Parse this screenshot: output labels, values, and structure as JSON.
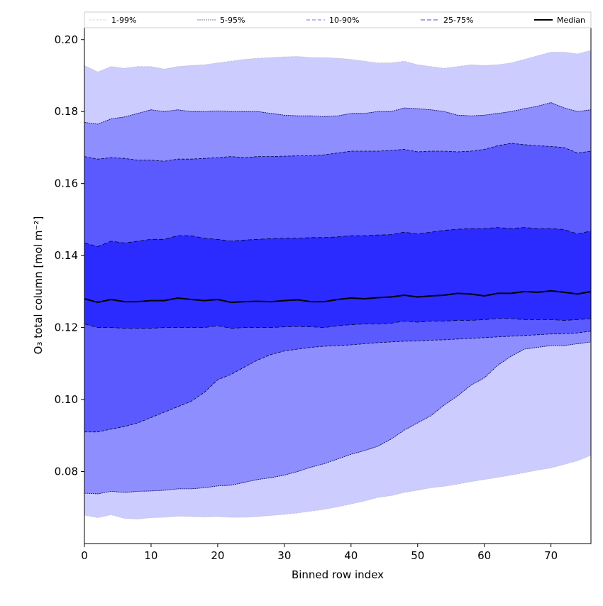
{
  "chart_data": {
    "type": "area",
    "title": "",
    "xlabel": "Binned row index",
    "ylabel": "O₃ total column [mol m⁻²]",
    "xlim": [
      0,
      76
    ],
    "ylim": [
      0.06,
      0.2035
    ],
    "xticks": [
      0,
      10,
      20,
      30,
      40,
      50,
      60,
      70
    ],
    "yticks": [
      0.08,
      0.1,
      0.12,
      0.14,
      0.16,
      0.18,
      0.2
    ],
    "ytick_labels": [
      "0.08",
      "0.10",
      "0.12",
      "0.14",
      "0.16",
      "0.18",
      "0.20"
    ],
    "x": [
      0,
      2,
      4,
      6,
      8,
      10,
      12,
      14,
      16,
      18,
      20,
      22,
      24,
      26,
      28,
      30,
      32,
      34,
      36,
      38,
      40,
      42,
      44,
      46,
      48,
      50,
      52,
      54,
      56,
      58,
      60,
      62,
      64,
      66,
      68,
      70,
      72,
      74,
      76
    ],
    "bands": [
      {
        "name": "1-99%",
        "color": "#ccccff",
        "line_color": "#b5b5c5",
        "dash": "1,1",
        "lower": [
          0.0679,
          0.0672,
          0.068,
          0.067,
          0.0668,
          0.0672,
          0.0673,
          0.0676,
          0.0675,
          0.0674,
          0.0675,
          0.0673,
          0.0673,
          0.0675,
          0.0678,
          0.0681,
          0.0685,
          0.069,
          0.0695,
          0.0702,
          0.071,
          0.0718,
          0.0728,
          0.0733,
          0.0742,
          0.0748,
          0.0755,
          0.0759,
          0.0765,
          0.0772,
          0.0778,
          0.0784,
          0.079,
          0.0797,
          0.0804,
          0.081,
          0.082,
          0.083,
          0.0845
        ],
        "upper": [
          0.1928,
          0.191,
          0.1925,
          0.192,
          0.1925,
          0.1925,
          0.1918,
          0.1925,
          0.1928,
          0.193,
          0.1935,
          0.194,
          0.1945,
          0.1948,
          0.195,
          0.1952,
          0.1953,
          0.195,
          0.195,
          0.1948,
          0.1945,
          0.194,
          0.1935,
          0.1935,
          0.194,
          0.193,
          0.1925,
          0.192,
          0.1925,
          0.193,
          0.1928,
          0.193,
          0.1935,
          0.1945,
          0.1955,
          0.1965,
          0.1965,
          0.196,
          0.197
        ]
      },
      {
        "name": "5-95%",
        "color": "#8e8eff",
        "line_color": "#000066",
        "dash": "2,1",
        "lower": [
          0.074,
          0.0738,
          0.0745,
          0.0742,
          0.0745,
          0.0746,
          0.0748,
          0.0752,
          0.0752,
          0.0755,
          0.076,
          0.0762,
          0.077,
          0.0778,
          0.0783,
          0.079,
          0.08,
          0.0812,
          0.0822,
          0.0835,
          0.0848,
          0.0858,
          0.087,
          0.089,
          0.0915,
          0.0935,
          0.0955,
          0.0985,
          0.101,
          0.104,
          0.106,
          0.1095,
          0.112,
          0.114,
          0.1145,
          0.115,
          0.115,
          0.1155,
          0.116
        ],
        "upper": [
          0.177,
          0.1765,
          0.178,
          0.1785,
          0.1795,
          0.1805,
          0.18,
          0.1805,
          0.18,
          0.18,
          0.1802,
          0.18,
          0.18,
          0.18,
          0.1795,
          0.179,
          0.1788,
          0.1788,
          0.1786,
          0.1788,
          0.1795,
          0.1795,
          0.18,
          0.18,
          0.181,
          0.1808,
          0.1805,
          0.18,
          0.179,
          0.1788,
          0.179,
          0.1795,
          0.18,
          0.1808,
          0.1815,
          0.1825,
          0.181,
          0.18,
          0.1805
        ]
      },
      {
        "name": "10-90%",
        "color": "#5a5aff",
        "line_color": "#000044",
        "dash": "4,2",
        "lower": [
          0.091,
          0.091,
          0.0918,
          0.0925,
          0.0935,
          0.095,
          0.0965,
          0.098,
          0.0995,
          0.102,
          0.1055,
          0.107,
          0.109,
          0.111,
          0.1125,
          0.1135,
          0.114,
          0.1145,
          0.1148,
          0.115,
          0.1152,
          0.1155,
          0.1158,
          0.116,
          0.1162,
          0.1163,
          0.1165,
          0.1166,
          0.1168,
          0.117,
          0.1172,
          0.1174,
          0.1176,
          0.1178,
          0.118,
          0.1182,
          0.1183,
          0.1185,
          0.119
        ],
        "upper": [
          0.1675,
          0.1668,
          0.1672,
          0.167,
          0.1665,
          0.1665,
          0.1662,
          0.1668,
          0.1668,
          0.167,
          0.1672,
          0.1675,
          0.1672,
          0.1675,
          0.1675,
          0.1676,
          0.1677,
          0.1677,
          0.168,
          0.1685,
          0.169,
          0.169,
          0.169,
          0.1692,
          0.1695,
          0.1688,
          0.169,
          0.169,
          0.1688,
          0.169,
          0.1695,
          0.1705,
          0.1712,
          0.1708,
          0.1705,
          0.1703,
          0.17,
          0.1685,
          0.169
        ]
      },
      {
        "name": "25-75%",
        "color": "#2b2bff",
        "line_color": "#000033",
        "dash": "6,3",
        "lower": [
          0.121,
          0.12,
          0.12,
          0.1198,
          0.1198,
          0.1198,
          0.12,
          0.12,
          0.12,
          0.12,
          0.1205,
          0.1198,
          0.12,
          0.12,
          0.12,
          0.1202,
          0.1203,
          0.1202,
          0.12,
          0.1205,
          0.1208,
          0.121,
          0.121,
          0.1212,
          0.1218,
          0.1215,
          0.1218,
          0.1218,
          0.122,
          0.122,
          0.1222,
          0.1225,
          0.1225,
          0.1222,
          0.1222,
          0.1222,
          0.122,
          0.1222,
          0.1225
        ],
        "upper": [
          0.1435,
          0.1425,
          0.144,
          0.1435,
          0.144,
          0.1445,
          0.1445,
          0.1455,
          0.1455,
          0.1448,
          0.1445,
          0.144,
          0.1443,
          0.1445,
          0.1447,
          0.1448,
          0.1448,
          0.145,
          0.145,
          0.1452,
          0.1455,
          0.1455,
          0.1457,
          0.1458,
          0.1465,
          0.146,
          0.1465,
          0.147,
          0.1473,
          0.1475,
          0.1475,
          0.1478,
          0.1475,
          0.1478,
          0.1475,
          0.1475,
          0.1472,
          0.146,
          0.1468
        ]
      }
    ],
    "median": {
      "name": "Median",
      "color": "#000000",
      "values": [
        0.128,
        0.127,
        0.1278,
        0.1272,
        0.1272,
        0.1275,
        0.1275,
        0.1282,
        0.1278,
        0.1275,
        0.1278,
        0.127,
        0.1272,
        0.1273,
        0.1272,
        0.1275,
        0.1277,
        0.1272,
        0.1272,
        0.1278,
        0.1282,
        0.128,
        0.1283,
        0.1285,
        0.129,
        0.1285,
        0.1288,
        0.129,
        0.1295,
        0.1293,
        0.1288,
        0.1295,
        0.1295,
        0.13,
        0.1298,
        0.1302,
        0.1298,
        0.1293,
        0.13
      ]
    },
    "legend": {
      "placement": "top",
      "entries": [
        {
          "label": "1-99%",
          "color": "#c8c8d8",
          "dash": "1,1"
        },
        {
          "label": "5-95%",
          "color": "#7777aa",
          "dash": "2,1"
        },
        {
          "label": "10-90%",
          "color": "#6e6eff",
          "dash": "5,3"
        },
        {
          "label": "25-75%",
          "color": "#4444ee",
          "dash": "6,3"
        },
        {
          "label": "Median",
          "color": "#000000",
          "dash": ""
        }
      ]
    },
    "grid": false
  }
}
